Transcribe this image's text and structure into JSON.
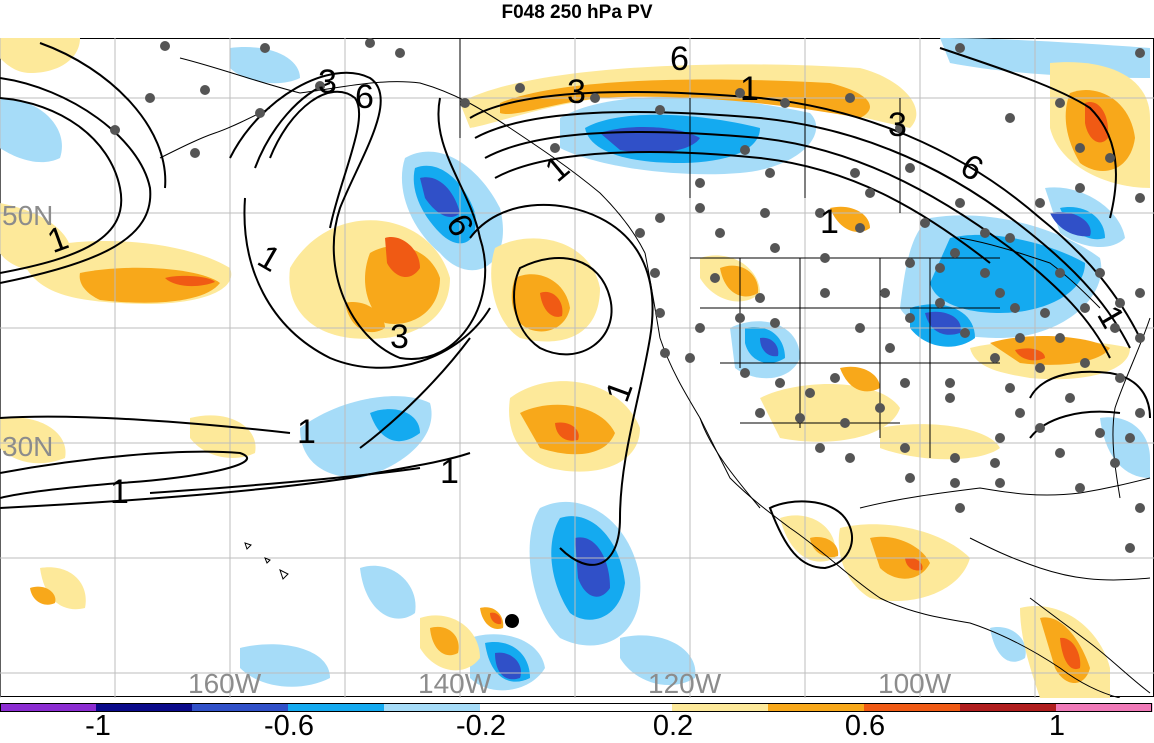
{
  "title": "F048 250 hPa PV",
  "map": {
    "longitude_labels": [
      "160W",
      "140W",
      "120W",
      "100W"
    ],
    "latitude_labels": [
      "50N",
      "30N"
    ],
    "contour_labels": [
      "1",
      "3",
      "6"
    ],
    "label_color": "#8c8c8c",
    "grid_color": "#bdbdbd",
    "coast_color": "#000000",
    "station_color": "#555555"
  },
  "colorbar": {
    "tick_labels": [
      "-1",
      "-0.6",
      "-0.2",
      "0.2",
      "0.6",
      "1"
    ],
    "colors": [
      "#8c2dd2",
      "#0a0a8a",
      "#3050c8",
      "#14aaf0",
      "#a6dcf8",
      "#ffffff",
      "#ffffff",
      "#fde99a",
      "#f8a81a",
      "#f05a14",
      "#b01e1e",
      "#f07ab8"
    ]
  }
}
